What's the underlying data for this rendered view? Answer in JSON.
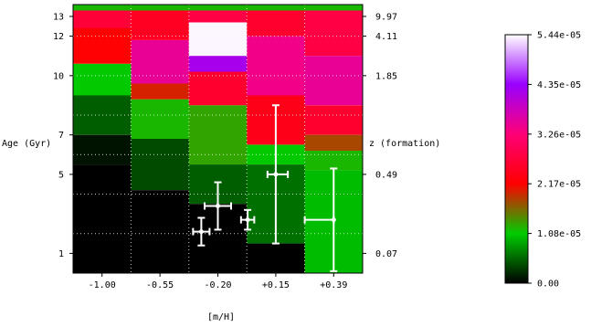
{
  "chart_data": {
    "type": "heatmap",
    "title": "",
    "xlabel": "[m/H]",
    "ylabel": "Age (Gyr)",
    "y2label": "z (formation)",
    "x_categories": [
      "-1.00",
      "-0.55",
      "-0.20",
      "+0.15",
      "+0.39"
    ],
    "y_ticks": [
      {
        "label": "13",
        "value": 13
      },
      {
        "label": "12",
        "value": 12
      },
      {
        "label": "10",
        "value": 10
      },
      {
        "label": "7",
        "value": 7
      },
      {
        "label": "5",
        "value": 5
      },
      {
        "label": "1",
        "value": 1
      }
    ],
    "y2_ticks": [
      {
        "label": "9.97",
        "age": 13
      },
      {
        "label": "4.11",
        "age": 12
      },
      {
        "label": "1.85",
        "age": 10
      },
      {
        "label": "0.49",
        "age": 5
      },
      {
        "label": "0.07",
        "age": 1
      }
    ],
    "colorbar": {
      "ticks": [
        "0.00",
        "1.08e-05",
        "2.17e-05",
        "3.26e-05",
        "4.35e-05",
        "5.44e-05"
      ],
      "stops": [
        "#000000",
        "#00cc00",
        "#ff0000",
        "#ff0077",
        "#9900ff",
        "#ffffff"
      ],
      "min": 0,
      "max": 5.44e-05
    },
    "grid": true,
    "columns": [
      {
        "x": "-1.00",
        "cells": [
          {
            "age_min": 13.3,
            "age_max": 13.6,
            "value": 1.2e-05
          },
          {
            "age_min": 12.4,
            "age_max": 13.3,
            "value": 2.7e-05
          },
          {
            "age_min": 10.6,
            "age_max": 12.4,
            "value": 2.2e-05
          },
          {
            "age_min": 9.0,
            "age_max": 10.6,
            "value": 1.1e-05
          },
          {
            "age_min": 7.0,
            "age_max": 9.0,
            "value": 5e-06
          },
          {
            "age_min": 5.5,
            "age_max": 7.0,
            "value": 1e-06
          },
          {
            "age_min": 0.0,
            "age_max": 5.5,
            "value": 0.0
          }
        ]
      },
      {
        "x": "-0.55",
        "cells": [
          {
            "age_min": 13.3,
            "age_max": 13.6,
            "value": 1.2e-05
          },
          {
            "age_min": 11.8,
            "age_max": 13.3,
            "value": 2.5e-05
          },
          {
            "age_min": 9.6,
            "age_max": 11.8,
            "value": 3.5e-05
          },
          {
            "age_min": 8.8,
            "age_max": 9.6,
            "value": 2e-05
          },
          {
            "age_min": 6.8,
            "age_max": 8.8,
            "value": 1.2e-05
          },
          {
            "age_min": 4.2,
            "age_max": 6.8,
            "value": 4e-06
          },
          {
            "age_min": 0.0,
            "age_max": 4.2,
            "value": 0.0
          }
        ]
      },
      {
        "x": "-0.20",
        "cells": [
          {
            "age_min": 13.3,
            "age_max": 13.6,
            "value": 1.2e-05
          },
          {
            "age_min": 12.7,
            "age_max": 13.3,
            "value": 2.8e-05
          },
          {
            "age_min": 11.0,
            "age_max": 12.7,
            "value": 5.4e-05
          },
          {
            "age_min": 10.2,
            "age_max": 11.0,
            "value": 4.2e-05
          },
          {
            "age_min": 8.5,
            "age_max": 10.2,
            "value": 2.6e-05
          },
          {
            "age_min": 5.5,
            "age_max": 8.5,
            "value": 1.3e-05
          },
          {
            "age_min": 3.5,
            "age_max": 5.5,
            "value": 5e-06
          },
          {
            "age_min": 0.0,
            "age_max": 3.5,
            "value": 0.0
          }
        ]
      },
      {
        "x": "+0.15",
        "cells": [
          {
            "age_min": 13.3,
            "age_max": 13.6,
            "value": 1.2e-05
          },
          {
            "age_min": 12.0,
            "age_max": 13.3,
            "value": 2.6e-05
          },
          {
            "age_min": 9.0,
            "age_max": 12.0,
            "value": 3.4e-05
          },
          {
            "age_min": 6.5,
            "age_max": 9.0,
            "value": 2.4e-05
          },
          {
            "age_min": 5.5,
            "age_max": 6.5,
            "value": 1.1e-05
          },
          {
            "age_min": 1.5,
            "age_max": 5.5,
            "value": 6e-06
          },
          {
            "age_min": 0.0,
            "age_max": 1.5,
            "value": 0.0
          }
        ]
      },
      {
        "x": "+0.39",
        "cells": [
          {
            "age_min": 13.3,
            "age_max": 13.6,
            "value": 1.2e-05
          },
          {
            "age_min": 11.0,
            "age_max": 13.3,
            "value": 2.8e-05
          },
          {
            "age_min": 8.5,
            "age_max": 11.0,
            "value": 3.5e-05
          },
          {
            "age_min": 7.0,
            "age_max": 8.5,
            "value": 2.6e-05
          },
          {
            "age_min": 6.2,
            "age_max": 7.0,
            "value": 1.8e-05
          },
          {
            "age_min": 5.2,
            "age_max": 6.2,
            "value": 1.2e-05
          },
          {
            "age_min": 0.0,
            "age_max": 5.2,
            "value": 1e-05
          }
        ]
      }
    ],
    "points": [
      {
        "mh": -0.3,
        "mh_err": 0.05,
        "age": 2.1,
        "age_err": 0.7
      },
      {
        "mh": -0.2,
        "mh_err": 0.08,
        "age": 3.4,
        "age_err": 1.2
      },
      {
        "mh": -0.02,
        "mh_err": 0.04,
        "age": 2.7,
        "age_err": 0.5
      },
      {
        "mh": 0.15,
        "mh_err": 0.05,
        "age": 5.0,
        "age_err": 3.5
      },
      {
        "mh": 0.39,
        "mh_err": 0.12,
        "age": 2.7,
        "age_err": 2.6
      }
    ]
  }
}
